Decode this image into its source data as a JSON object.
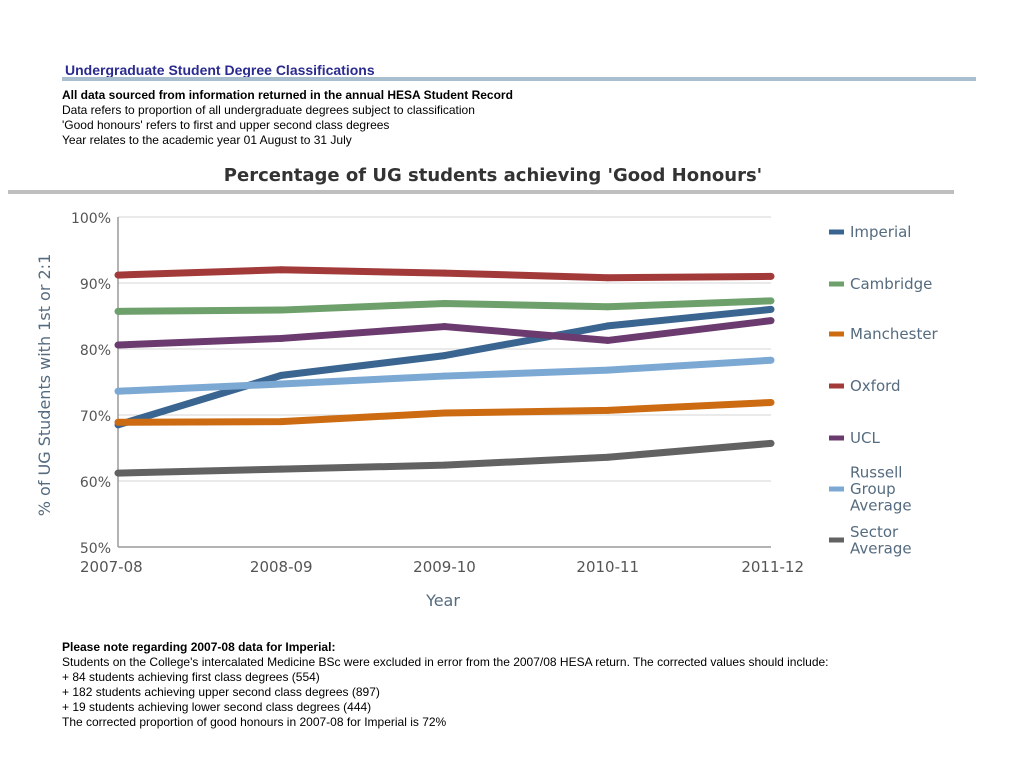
{
  "header": {
    "title": "Undergraduate Student Degree Classifications"
  },
  "intro": {
    "line1": "All data sourced from information returned in the annual HESA Student Record",
    "line2": "Data refers to proportion of all undergraduate degrees subject to classification",
    "line3": "'Good honours' refers to first and upper second class degrees",
    "line4": "Year relates to the academic year 01 August to 31 July"
  },
  "chart_data": {
    "type": "line",
    "title": "Percentage of UG students achieving 'Good Honours'",
    "xlabel": "Year",
    "ylabel": "% of UG Students with 1st or 2:1",
    "categories": [
      "2007-08",
      "2008-09",
      "2009-10",
      "2010-11",
      "2011-12"
    ],
    "ylim": [
      50,
      100
    ],
    "yticks": [
      {
        "value": 50,
        "label": "50%"
      },
      {
        "value": 60,
        "label": "60%"
      },
      {
        "value": 70,
        "label": "70%"
      },
      {
        "value": 80,
        "label": "80%"
      },
      {
        "value": 90,
        "label": "90%"
      },
      {
        "value": 100,
        "label": "100%"
      }
    ],
    "grid": true,
    "legend": "right",
    "series": [
      {
        "name": "Imperial",
        "color": "#3a6590",
        "values": [
          68.5,
          76,
          79,
          83.5,
          86
        ]
      },
      {
        "name": "Cambridge",
        "color": "#6da06b",
        "values": [
          85.7,
          85.9,
          86.9,
          86.4,
          87.3
        ]
      },
      {
        "name": "Manchester",
        "color": "#cc6b12",
        "values": [
          68.9,
          69.0,
          70.3,
          70.7,
          71.9
        ]
      },
      {
        "name": "Oxford",
        "color": "#a33a3a",
        "values": [
          91.2,
          92.0,
          91.5,
          90.8,
          91.0
        ]
      },
      {
        "name": "UCL",
        "color": "#6b3a6f",
        "values": [
          80.6,
          81.6,
          83.4,
          81.3,
          84.3
        ]
      },
      {
        "name": "Russell Group Average",
        "label_lines": [
          "Russell",
          "Group",
          "Average"
        ],
        "color": "#7ba9d3",
        "values": [
          73.6,
          74.7,
          75.9,
          76.8,
          78.3
        ]
      },
      {
        "name": "Sector Average",
        "label_lines": [
          "Sector",
          "Average"
        ],
        "color": "#626262",
        "values": [
          61.2,
          61.8,
          62.4,
          63.6,
          65.7
        ]
      }
    ]
  },
  "note": {
    "heading": "Please note regarding 2007-08 data for Imperial:",
    "line1": "Students on the College's intercalated Medicine BSc were excluded in error from the 2007/08 HESA return. The corrected values should include:",
    "line2": "+ 84 students achieving first class degrees (554)",
    "line3": "+ 182 students achieving upper second class degrees (897)",
    "line4": "+ 19 students achieving lower second class degrees (444)",
    "line5": "The corrected proportion of good honours in 2007-08 for Imperial is 72%"
  }
}
